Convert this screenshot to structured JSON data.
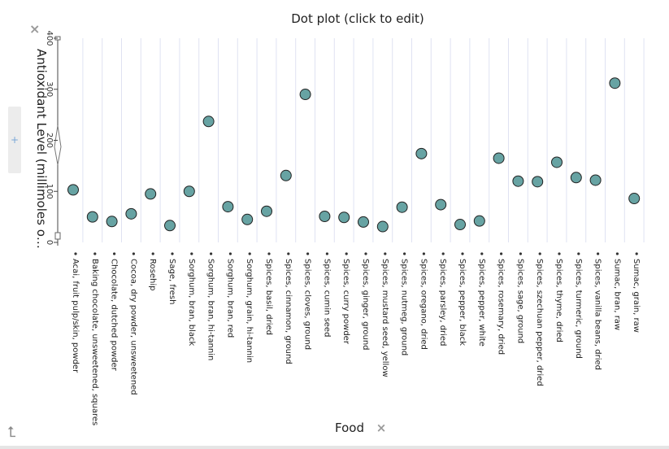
{
  "chart_data": {
    "type": "scatter",
    "title": "Dot plot (click to edit)",
    "xlabel": "Food",
    "ylabel": "Antioxidant Level (millimoles of ...",
    "ylim": [
      0,
      400
    ],
    "yticks": [
      "0",
      "100",
      "200",
      "300",
      "400"
    ],
    "grid": true,
    "categories": [
      "Acai, fruit pulp/skin, powder",
      "Baking chocolate, unsweetened, squares",
      "Chocolate, dutched powder",
      "Cocoa, dry powder, unsweetened",
      "Rosehip",
      "Sage, fresh",
      "Sorghum, bran, black",
      "Sorghum, bran, hi-tannin",
      "Sorghum, bran, red",
      "Sorghum, grain, hi-tannin",
      "Spices, basil, dried",
      "Spices, cinnamon, ground",
      "Spices, cloves, ground",
      "Spices, cumin seed",
      "Spices, curry powder",
      "Spices, ginger, ground",
      "Spices, mustard seed, yellow",
      "Spices, nutmeg, ground",
      "Spices, oregano, dried",
      "Spices, parsley, dried",
      "Spices, pepper, black",
      "Spices, pepper, white",
      "Spices, rosemary, dried",
      "Spices, sage, ground",
      "Spices, szechuan pepper, dried",
      "Spices, thyme, dried",
      "Spices, turmeric, ground",
      "Spices, vanilla beans, dried",
      "Sumac, bran, raw",
      "Sumac, grain, raw"
    ],
    "values": [
      103,
      50,
      41,
      56,
      95,
      33,
      100,
      237,
      70,
      45,
      61,
      131,
      290,
      51,
      49,
      40,
      31,
      69,
      174,
      74,
      35,
      42,
      165,
      120,
      119,
      157,
      127,
      122,
      312,
      86
    ],
    "marker_color": "#67a3a3"
  },
  "controls": {
    "close_symbol": "×",
    "side_tab_symbol": "+",
    "axis_icon_symbol": "⮤",
    "axis_close_symbol": "×"
  }
}
